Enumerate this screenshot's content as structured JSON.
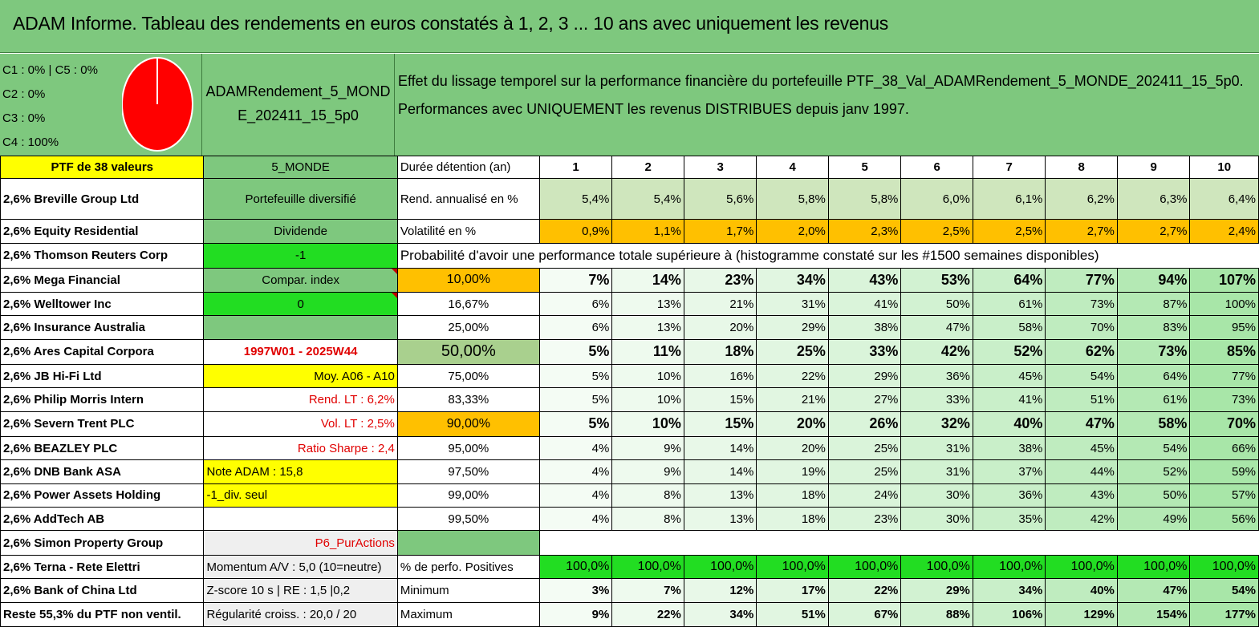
{
  "title": "ADAM Informe. Tableau des rendements en euros constatés à 1, 2, 3 ... 10 ans avec uniquement les revenus",
  "pie": {
    "lines": [
      "C1 : 0% | C5 : 0%",
      "C2 : 0%",
      "C3 : 0%",
      "C4 : 100%"
    ],
    "slices": [
      {
        "name": "C4",
        "value": 100,
        "color": "#ff0000"
      }
    ]
  },
  "ptf_name": "ADAMRendement_5_MONDE_202411_15_5p0",
  "effect_text": "Effet du lissage temporel sur la performance financière du portefeuille PTF_38_Val_ADAMRendement_5_MONDE_202411_15_5p0. Performances avec UNIQUEMENT les revenus DISTRIBUES depuis janv 1997.",
  "header": {
    "ptf_count": "PTF de 38 valeurs",
    "zone": "5_MONDE",
    "duration_label": "Durée détention (an)",
    "years": [
      "1",
      "2",
      "3",
      "4",
      "5",
      "6",
      "7",
      "8",
      "9",
      "10"
    ]
  },
  "holdings": [
    "2,6% Breville Group Ltd",
    "2,6% Equity Residential",
    "2,6% Thomson Reuters Corp",
    "2,6% Mega Financial",
    "2,6% Welltower Inc",
    "2,6% Insurance Australia",
    "2,6% Ares Capital Corpora",
    "2,6% JB Hi-Fi Ltd",
    "2,6% Philip Morris Intern",
    "2,6% Severn Trent PLC",
    "2,6% BEAZLEY PLC",
    "2,6% DNB Bank ASA",
    "2,6% Power Assets Holding",
    "2,6% AddTech AB",
    "2,6% Simon Property Group",
    "2,6% Terna - Rete Elettri",
    "2,6% Bank of China Ltd",
    "Reste 55,3% du PTF non ventil."
  ],
  "info": {
    "diversified": "Portefeuille diversifié",
    "dividend": "Dividende",
    "minus_one": "-1",
    "compar_index": "Compar. index",
    "zero": "0",
    "period": "1997W01 - 2025W44",
    "moy": "Moy. A06 - A10",
    "rend_lt": "Rend. LT : 6,2%",
    "vol_lt": "Vol. LT : 2,5%",
    "sharpe": "Ratio Sharpe : 2,4",
    "note": "Note ADAM : 15,8",
    "div_seul": "-1_div. seul",
    "p6": "P6_PurActions",
    "momentum": "Momentum A/V : 5,0 (10=neutre)",
    "zscore": "Z-score 10 s | RE : 1,5 |0,2",
    "regularite": "Régularité croiss. : 20,0 / 20"
  },
  "rend_label": "Rend. annualisé en %",
  "rend_values": [
    "5,4%",
    "5,4%",
    "5,6%",
    "5,8%",
    "5,8%",
    "6,0%",
    "6,1%",
    "6,2%",
    "6,3%",
    "6,4%"
  ],
  "vol_label": "Volatilité en %",
  "vol_values": [
    "0,9%",
    "1,1%",
    "1,7%",
    "2,0%",
    "2,3%",
    "2,5%",
    "2,5%",
    "2,7%",
    "2,7%",
    "2,4%"
  ],
  "proba_title": "Probabilité d'avoir une performance totale supérieure à (histogramme constaté sur les #1500 semaines disponibles)",
  "proba_rows": [
    {
      "p": "10,00%",
      "v": [
        "7%",
        "14%",
        "23%",
        "34%",
        "43%",
        "53%",
        "64%",
        "77%",
        "94%",
        "107%"
      ]
    },
    {
      "p": "16,67%",
      "v": [
        "6%",
        "13%",
        "21%",
        "31%",
        "41%",
        "50%",
        "61%",
        "73%",
        "87%",
        "100%"
      ]
    },
    {
      "p": "25,00%",
      "v": [
        "6%",
        "13%",
        "20%",
        "29%",
        "38%",
        "47%",
        "58%",
        "70%",
        "83%",
        "95%"
      ]
    },
    {
      "p": "50,00%",
      "v": [
        "5%",
        "11%",
        "18%",
        "25%",
        "33%",
        "42%",
        "52%",
        "62%",
        "73%",
        "85%"
      ]
    },
    {
      "p": "75,00%",
      "v": [
        "5%",
        "10%",
        "16%",
        "22%",
        "29%",
        "36%",
        "45%",
        "54%",
        "64%",
        "77%"
      ]
    },
    {
      "p": "83,33%",
      "v": [
        "5%",
        "10%",
        "15%",
        "21%",
        "27%",
        "33%",
        "41%",
        "51%",
        "61%",
        "73%"
      ]
    },
    {
      "p": "90,00%",
      "v": [
        "5%",
        "10%",
        "15%",
        "20%",
        "26%",
        "32%",
        "40%",
        "47%",
        "58%",
        "70%"
      ]
    },
    {
      "p": "95,00%",
      "v": [
        "4%",
        "9%",
        "14%",
        "20%",
        "25%",
        "31%",
        "38%",
        "45%",
        "54%",
        "66%"
      ]
    },
    {
      "p": "97,50%",
      "v": [
        "4%",
        "9%",
        "14%",
        "19%",
        "25%",
        "31%",
        "37%",
        "44%",
        "52%",
        "59%"
      ]
    },
    {
      "p": "99,00%",
      "v": [
        "4%",
        "8%",
        "13%",
        "18%",
        "24%",
        "30%",
        "36%",
        "43%",
        "50%",
        "57%"
      ]
    },
    {
      "p": "99,50%",
      "v": [
        "4%",
        "8%",
        "13%",
        "18%",
        "23%",
        "30%",
        "35%",
        "42%",
        "49%",
        "56%"
      ]
    }
  ],
  "pos_label": "% de perfo. Positives",
  "pos_values": [
    "100,0%",
    "100,0%",
    "100,0%",
    "100,0%",
    "100,0%",
    "100,0%",
    "100,0%",
    "100,0%",
    "100,0%",
    "100,0%"
  ],
  "min_label": "Minimum",
  "min_values": [
    "3%",
    "7%",
    "12%",
    "17%",
    "22%",
    "29%",
    "34%",
    "40%",
    "47%",
    "54%"
  ],
  "max_label": "Maximum",
  "max_values": [
    "9%",
    "22%",
    "34%",
    "51%",
    "67%",
    "88%",
    "106%",
    "129%",
    "154%",
    "177%"
  ],
  "colors": {
    "green": "#7ec87e",
    "bright_green": "#22dd22",
    "orange": "#ffc000",
    "yellow": "#ffff00",
    "red": "#ff0000"
  }
}
